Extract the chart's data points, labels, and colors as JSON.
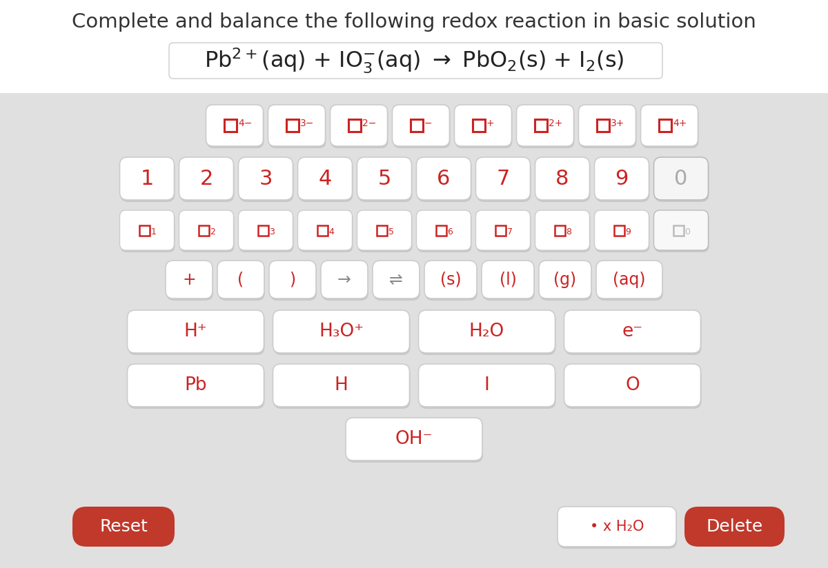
{
  "title": "Complete and balance the following redox reaction in basic solution",
  "bg_color": "#e8e8e8",
  "top_bg": "#ffffff",
  "red": "#cc2222",
  "dark_red": "#c0392b",
  "shadow_color": "#aaaaaa",
  "border_color": "#cccccc",
  "border_color_light": "#bbbbbb",
  "gray_text": "#999999",
  "row1_charges": [
    "4−",
    "3−",
    "2−",
    "−",
    "+",
    "2+",
    "3+",
    "4+"
  ],
  "row2_nums": [
    "1",
    "2",
    "3",
    "4",
    "5",
    "6",
    "7",
    "8",
    "9",
    "0"
  ],
  "row3_subs": [
    "1",
    "2",
    "3",
    "4",
    "5",
    "6",
    "7",
    "8",
    "9",
    "0"
  ],
  "row4_syms": [
    "+",
    "(",
    ")",
    "→",
    "⇌",
    "(s)",
    "(l)",
    "(g)",
    "(aq)"
  ],
  "row5_chem": [
    "H⁺",
    "H₃O⁺",
    "H₂O",
    "e⁻"
  ],
  "row6_elem": [
    "Pb",
    "H",
    "I",
    "O"
  ],
  "row7_ion": [
    "OH⁻"
  ],
  "reset_label": "Reset",
  "xh2o_label": "• x H₂O",
  "delete_label": "Delete",
  "title_fontsize": 21,
  "reaction_fontsize": 23,
  "num_fontsize": 22,
  "sym_fontsize": 17,
  "chem_fontsize": 19,
  "small_fontsize": 13,
  "btn_fontsize": 18
}
